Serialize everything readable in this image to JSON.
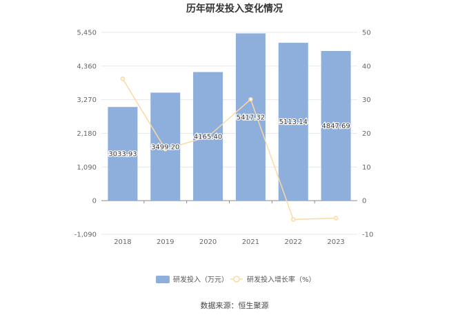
{
  "chart_data": {
    "type": "bar",
    "title": "历年研发投入变化情况",
    "categories": [
      "2018",
      "2019",
      "2020",
      "2021",
      "2022",
      "2023"
    ],
    "series": [
      {
        "name": "研发投入（万元）",
        "type": "bar",
        "axis": "left",
        "color": "#8eaedc",
        "values": [
          3033.93,
          3499.2,
          4165.4,
          5417.32,
          5113.14,
          4847.69
        ],
        "labels": [
          "3033.93",
          "3499.20",
          "4165.40",
          "5417.32",
          "5113.14",
          "4847.69"
        ]
      },
      {
        "name": "研发投入增长率（%）",
        "type": "line",
        "axis": "right",
        "color": "#fcd9a1",
        "values": [
          36.2,
          15.3,
          19.0,
          30.1,
          -5.6,
          -5.2
        ]
      }
    ],
    "y_left": {
      "ylim": [
        -1090,
        5450
      ],
      "ticks": [
        "-1,090",
        "0",
        "1,090",
        "2,180",
        "3,270",
        "4,360",
        "5,450"
      ],
      "tick_values": [
        -1090,
        0,
        1090,
        2180,
        3270,
        4360,
        5450
      ]
    },
    "y_right": {
      "ylim": [
        -10,
        50
      ],
      "ticks": [
        "-10",
        "0",
        "10",
        "20",
        "30",
        "40",
        "50"
      ],
      "tick_values": [
        -10,
        0,
        10,
        20,
        30,
        40,
        50
      ]
    },
    "grid": true,
    "legend_position": "bottom"
  },
  "source_text": "数据来源：恒生聚源"
}
